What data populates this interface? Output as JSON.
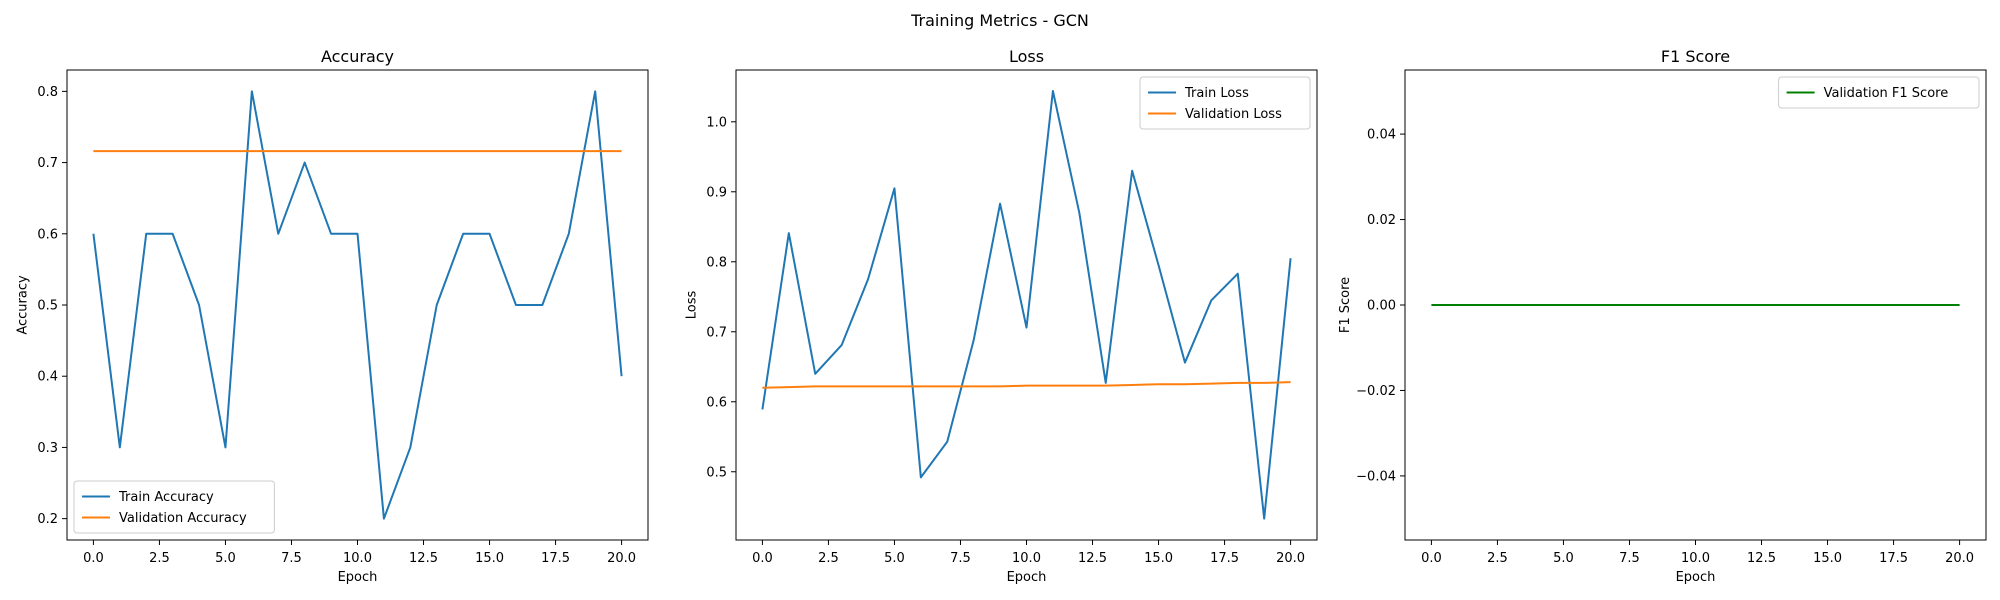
{
  "figure": {
    "suptitle": "Training Metrics - GCN"
  },
  "chart_data": [
    {
      "type": "line",
      "title": "Accuracy",
      "xlabel": "Epoch",
      "ylabel": "Accuracy",
      "xlim": [
        -1,
        21
      ],
      "ylim": [
        0.17,
        0.83
      ],
      "x_ticks": [
        0.0,
        2.5,
        5.0,
        7.5,
        10.0,
        12.5,
        15.0,
        17.5,
        20.0
      ],
      "x_tick_labels": [
        "0.0",
        "2.5",
        "5.0",
        "7.5",
        "10.0",
        "12.5",
        "15.0",
        "17.5",
        "20.0"
      ],
      "y_ticks": [
        0.2,
        0.3,
        0.4,
        0.5,
        0.6,
        0.7,
        0.8
      ],
      "y_tick_labels": [
        "0.2",
        "0.3",
        "0.4",
        "0.5",
        "0.6",
        "0.7",
        "0.8"
      ],
      "legend_position": "lower-left",
      "x": [
        0,
        1,
        2,
        3,
        4,
        5,
        6,
        7,
        8,
        9,
        10,
        11,
        12,
        13,
        14,
        15,
        16,
        17,
        18,
        19,
        20
      ],
      "series": [
        {
          "name": "Train Accuracy",
          "color": "#1f77b4",
          "values": [
            0.6,
            0.3,
            0.6,
            0.6,
            0.5,
            0.3,
            0.8,
            0.6,
            0.7,
            0.6,
            0.6,
            0.2,
            0.3,
            0.5,
            0.6,
            0.6,
            0.5,
            0.5,
            0.6,
            0.8,
            0.4
          ]
        },
        {
          "name": "Validation Accuracy",
          "color": "#ff7f0e",
          "values": [
            0.716,
            0.716,
            0.716,
            0.716,
            0.716,
            0.716,
            0.716,
            0.716,
            0.716,
            0.716,
            0.716,
            0.716,
            0.716,
            0.716,
            0.716,
            0.716,
            0.716,
            0.716,
            0.716,
            0.716,
            0.716
          ]
        }
      ]
    },
    {
      "type": "line",
      "title": "Loss",
      "xlabel": "Epoch",
      "ylabel": "Loss",
      "xlim": [
        -1,
        21
      ],
      "ylim": [
        0.4025,
        1.074
      ],
      "x_ticks": [
        0.0,
        2.5,
        5.0,
        7.5,
        10.0,
        12.5,
        15.0,
        17.5,
        20.0
      ],
      "x_tick_labels": [
        "0.0",
        "2.5",
        "5.0",
        "7.5",
        "10.0",
        "12.5",
        "15.0",
        "17.5",
        "20.0"
      ],
      "y_ticks": [
        0.5,
        0.6,
        0.7,
        0.8,
        0.9,
        1.0
      ],
      "y_tick_labels": [
        "0.5",
        "0.6",
        "0.7",
        "0.8",
        "0.9",
        "1.0"
      ],
      "legend_position": "upper-right",
      "x": [
        0,
        1,
        2,
        3,
        4,
        5,
        6,
        7,
        8,
        9,
        10,
        11,
        12,
        13,
        14,
        15,
        16,
        17,
        18,
        19,
        20
      ],
      "series": [
        {
          "name": "Train Loss",
          "color": "#1f77b4",
          "values": [
            0.589,
            0.841,
            0.64,
            0.681,
            0.775,
            0.905,
            0.492,
            0.543,
            0.688,
            0.883,
            0.706,
            1.044,
            0.87,
            0.627,
            0.93,
            0.795,
            0.656,
            0.745,
            0.783,
            0.433,
            0.805
          ]
        },
        {
          "name": "Validation Loss",
          "color": "#ff7f0e",
          "values": [
            0.62,
            0.621,
            0.622,
            0.622,
            0.622,
            0.622,
            0.622,
            0.622,
            0.622,
            0.622,
            0.623,
            0.623,
            0.623,
            0.623,
            0.624,
            0.625,
            0.625,
            0.626,
            0.627,
            0.627,
            0.628
          ]
        }
      ]
    },
    {
      "type": "line",
      "title": "F1 Score",
      "xlabel": "Epoch",
      "ylabel": "F1 Score",
      "xlim": [
        -1,
        21
      ],
      "ylim": [
        -0.055,
        0.055
      ],
      "x_ticks": [
        0.0,
        2.5,
        5.0,
        7.5,
        10.0,
        12.5,
        15.0,
        17.5,
        20.0
      ],
      "x_tick_labels": [
        "0.0",
        "2.5",
        "5.0",
        "7.5",
        "10.0",
        "12.5",
        "15.0",
        "17.5",
        "20.0"
      ],
      "y_ticks": [
        -0.04,
        -0.02,
        0.0,
        0.02,
        0.04
      ],
      "y_tick_labels": [
        "−0.04",
        "−0.02",
        "0.00",
        "0.02",
        "0.04"
      ],
      "legend_position": "upper-right",
      "x": [
        0,
        1,
        2,
        3,
        4,
        5,
        6,
        7,
        8,
        9,
        10,
        11,
        12,
        13,
        14,
        15,
        16,
        17,
        18,
        19,
        20
      ],
      "series": [
        {
          "name": "Validation F1 Score",
          "color": "#008000",
          "values": [
            0,
            0,
            0,
            0,
            0,
            0,
            0,
            0,
            0,
            0,
            0,
            0,
            0,
            0,
            0,
            0,
            0,
            0,
            0,
            0,
            0
          ]
        }
      ]
    }
  ]
}
